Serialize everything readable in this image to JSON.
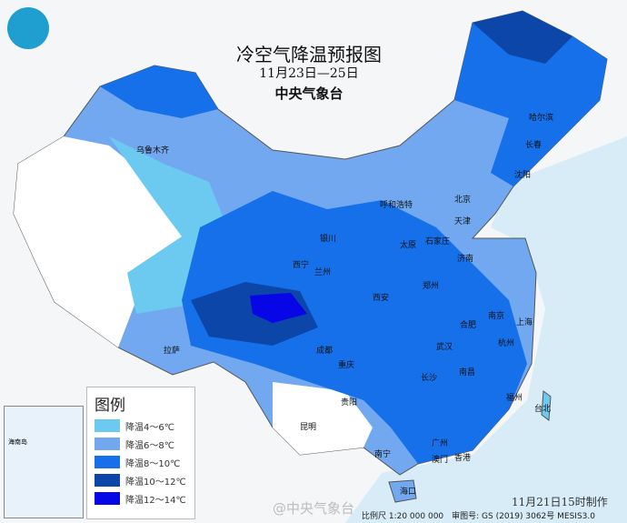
{
  "header": {
    "title": "冷空气降温预报图",
    "date_range": "11月23日—25日",
    "agency": "中央气象台"
  },
  "legend": {
    "title": "图例",
    "items": [
      {
        "label": "降温4～6℃",
        "color": "#6ccaf0"
      },
      {
        "label": "降温6～8℃",
        "color": "#72a8f0"
      },
      {
        "label": "降温8～10℃",
        "color": "#1570ea"
      },
      {
        "label": "降温10～12℃",
        "color": "#0b46a8"
      },
      {
        "label": "降温12～14℃",
        "color": "#0606e6"
      }
    ]
  },
  "cities": [
    "乌鲁木齐",
    "哈尔滨",
    "长春",
    "沈阳",
    "北京",
    "天津",
    "呼和浩特",
    "银川",
    "太原",
    "石家庄",
    "济南",
    "西宁",
    "兰州",
    "郑州",
    "西安",
    "拉萨",
    "成都",
    "重庆",
    "合肥",
    "南京",
    "上海",
    "武汉",
    "杭州",
    "长沙",
    "南昌",
    "福州",
    "台北",
    "贵阳",
    "昆明",
    "南宁",
    "广州",
    "澳门",
    "香港",
    "海口"
  ],
  "inset_label": "海南岛",
  "footer": {
    "made": "11月21日15时制作",
    "scale": "比例尺 1:20 000 000　审图号: GS (2019) 3062号 MESIS3.0",
    "watermark": "@中央气象台"
  }
}
